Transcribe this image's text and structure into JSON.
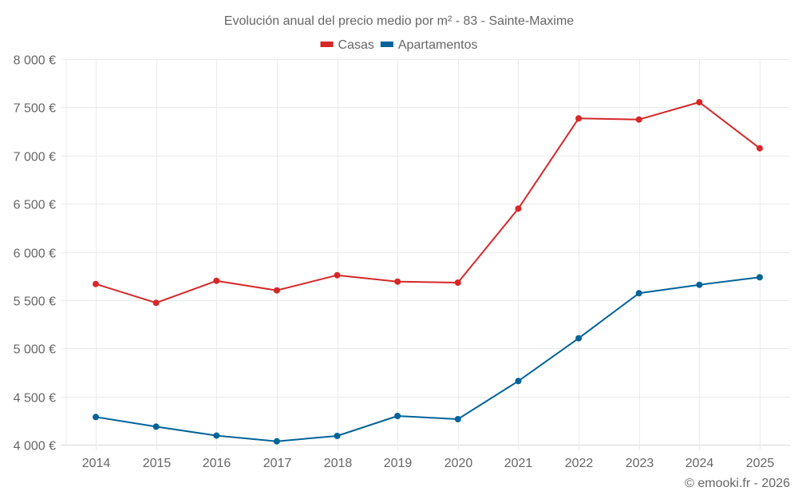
{
  "chart_data": {
    "type": "line",
    "title": "Evolución anual del precio medio por m² - 83 - Sainte-Maxime",
    "xlabel": "",
    "ylabel": "",
    "categories": [
      "2014",
      "2015",
      "2016",
      "2017",
      "2018",
      "2019",
      "2020",
      "2021",
      "2022",
      "2023",
      "2024",
      "2025"
    ],
    "series": [
      {
        "name": "Casas",
        "color": "#d62728",
        "values": [
          5667,
          5472,
          5700,
          5601,
          5758,
          5692,
          5681,
          6449,
          7385,
          7373,
          7553,
          7075
        ]
      },
      {
        "name": "Apartamentos",
        "color": "#006399",
        "values": [
          4287,
          4187,
          4094,
          4036,
          4091,
          4298,
          4265,
          4660,
          5104,
          5571,
          5659,
          5737
        ]
      }
    ],
    "ylim": [
      4000,
      8000
    ],
    "yticks": [
      4000,
      4500,
      5000,
      5500,
      6000,
      6500,
      7000,
      7500,
      8000
    ],
    "ytick_labels": [
      "4 000 €",
      "4 500 €",
      "5 000 €",
      "5 500 €",
      "6 000 €",
      "6 500 €",
      "7 000 €",
      "7 500 €",
      "8 000 €"
    ],
    "grid": true,
    "legend_position": "top-center",
    "credit": "© emooki.fr - 2026"
  }
}
